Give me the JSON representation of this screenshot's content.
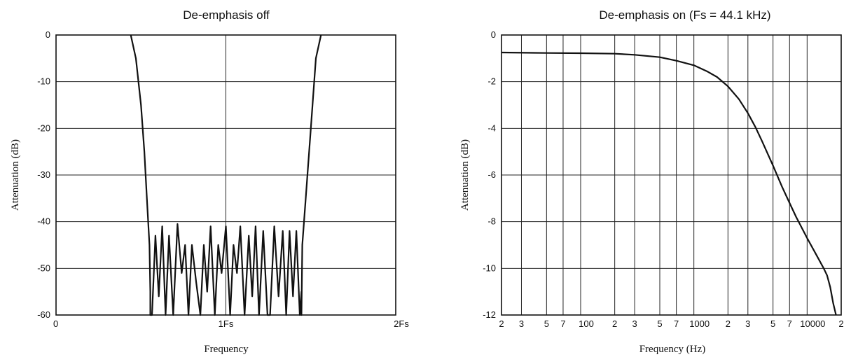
{
  "chart_data": [
    {
      "type": "line",
      "title": "De-emphasis off",
      "xlabel": "Frequency",
      "ylabel": "Attenuation (dB)",
      "xlim": [
        0,
        2
      ],
      "ylim": [
        -60,
        0
      ],
      "x_scale": "linear",
      "y_ticks": [
        0,
        -10,
        -20,
        -30,
        -40,
        -50,
        -60
      ],
      "x_ticks": [
        {
          "value": 0,
          "label": "0"
        },
        {
          "value": 1,
          "label": "1Fs"
        },
        {
          "value": 2,
          "label": "2Fs"
        }
      ],
      "grid": true,
      "series": [
        {
          "x": [
            0.44,
            0.47,
            0.5,
            0.52,
            0.535,
            0.55,
            0.555,
            0.555,
            0.565,
            0.585,
            0.605,
            0.625,
            0.645,
            0.665,
            0.69,
            0.715,
            0.74,
            0.76,
            0.78,
            0.8,
            0.825,
            0.85,
            0.87,
            0.89,
            0.91,
            0.935,
            0.955,
            0.975,
            1.0,
            1.025,
            1.045,
            1.065,
            1.085,
            1.11,
            1.135,
            1.155,
            1.175,
            1.195,
            1.22,
            1.245,
            1.26,
            1.285,
            1.31,
            1.335,
            1.355,
            1.375,
            1.395,
            1.415,
            1.435,
            1.445,
            1.445,
            1.45,
            1.47,
            1.5,
            1.53,
            1.56
          ],
          "y": [
            0,
            -5,
            -15,
            -25,
            -35,
            -45,
            -55,
            -60,
            -60,
            -43,
            -56,
            -41,
            -60,
            -43,
            -60,
            -40.5,
            -51,
            -45,
            -60,
            -45,
            -53,
            -60,
            -45,
            -55,
            -41,
            -60,
            -45,
            -51,
            -41,
            -60,
            -45,
            -51,
            -41,
            -60,
            -43,
            -56,
            -41,
            -60,
            -42,
            -60,
            -60,
            -41,
            -56,
            -42,
            -60,
            -42,
            -56,
            -42,
            -60,
            -55,
            -60,
            -45,
            -35,
            -20,
            -5,
            0
          ]
        }
      ]
    },
    {
      "type": "line",
      "title": "De-emphasis on (Fs = 44.1 kHz)",
      "xlabel": "Frequency (Hz)",
      "ylabel": "Attenuation (dB)",
      "xlim": [
        20,
        20000
      ],
      "ylim": [
        -12,
        0
      ],
      "x_scale": "log",
      "y_ticks": [
        0,
        -2,
        -4,
        -6,
        -8,
        -10,
        -12
      ],
      "x_ticks": [
        {
          "value": 20,
          "label": "2"
        },
        {
          "value": 30,
          "label": "3"
        },
        {
          "value": 50,
          "label": "5"
        },
        {
          "value": 70,
          "label": "7"
        },
        {
          "value": 100,
          "label": "100"
        },
        {
          "value": 200,
          "label": "2"
        },
        {
          "value": 300,
          "label": "3"
        },
        {
          "value": 500,
          "label": "5"
        },
        {
          "value": 700,
          "label": "7"
        },
        {
          "value": 1000,
          "label": "1000"
        },
        {
          "value": 2000,
          "label": "2"
        },
        {
          "value": 3000,
          "label": "3"
        },
        {
          "value": 5000,
          "label": "5"
        },
        {
          "value": 7000,
          "label": "7"
        },
        {
          "value": 10000,
          "label": "10000"
        },
        {
          "value": 20000,
          "label": "2"
        }
      ],
      "grid": true,
      "series": [
        {
          "x": [
            20,
            50,
            100,
            200,
            300,
            500,
            700,
            1000,
            1300,
            1600,
            2000,
            2500,
            3000,
            3500,
            4000,
            5000,
            6000,
            7000,
            8000,
            10000,
            12000,
            14000,
            15000,
            16000,
            17000,
            18000
          ],
          "y": [
            -0.75,
            -0.77,
            -0.78,
            -0.8,
            -0.85,
            -0.95,
            -1.1,
            -1.3,
            -1.55,
            -1.8,
            -2.2,
            -2.75,
            -3.35,
            -3.95,
            -4.55,
            -5.6,
            -6.5,
            -7.2,
            -7.8,
            -8.7,
            -9.4,
            -10.0,
            -10.3,
            -10.8,
            -11.5,
            -12.0
          ]
        }
      ]
    }
  ]
}
